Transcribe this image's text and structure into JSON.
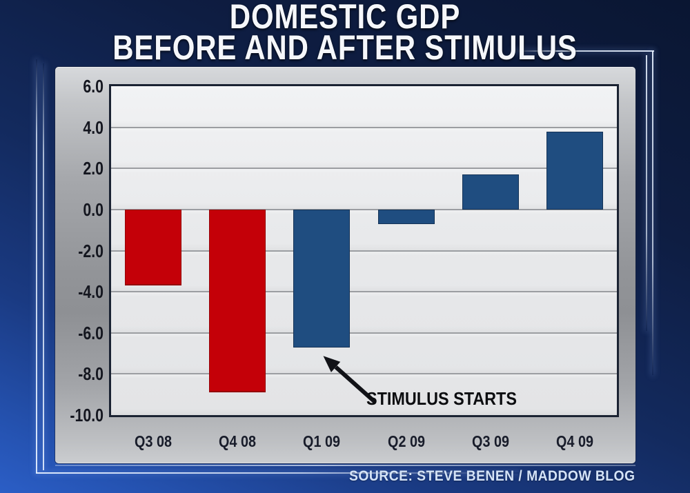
{
  "header": {
    "title_line1": "DOMESTIC GDP",
    "title_line2": "BEFORE AND AFTER STIMULUS"
  },
  "footer": {
    "source": "SOURCE: STEVE BENEN / MADDOW BLOG"
  },
  "colors": {
    "background_top": "#0a1632",
    "background_bottom": "#2b5ec6",
    "panel_gray": "#929498",
    "plot_background": "#e8e9eb",
    "plot_border": "#1a2232",
    "gridline": "#9b9da1",
    "bar_red_2008": "#c40008",
    "bar_blue_2009": "#1f4d80",
    "title_text": "#f5f7fb",
    "source_text": "#d4e3f7",
    "annotation_text": "#0c0d10"
  },
  "chart_data": {
    "type": "bar",
    "title": "DOMESTIC GDP BEFORE AND AFTER STIMULUS",
    "categories": [
      "Q3 08",
      "Q4 08",
      "Q1 09",
      "Q2 09",
      "Q3 09",
      "Q4 09"
    ],
    "values": [
      -3.7,
      -8.9,
      -6.7,
      -0.7,
      1.7,
      3.8
    ],
    "bar_colors": [
      "#c40008",
      "#c40008",
      "#1f4d80",
      "#1f4d80",
      "#1f4d80",
      "#1f4d80"
    ],
    "color_meaning": {
      "#c40008": "pre-stimulus decline (red)",
      "#1f4d80": "post-stimulus recovery (blue)"
    },
    "xlabel": "",
    "ylabel": "",
    "ylim": [
      -10,
      6
    ],
    "ytick_step": 2,
    "ytick_labels": [
      "6.0",
      "4.0",
      "2.0",
      "0.0",
      "-2.0",
      "-4.0",
      "-6.0",
      "-8.0",
      "-10.0"
    ],
    "grid": true,
    "legend": "none",
    "annotation": {
      "text": "STIMULUS STARTS",
      "points_to": "Q1 09"
    }
  }
}
